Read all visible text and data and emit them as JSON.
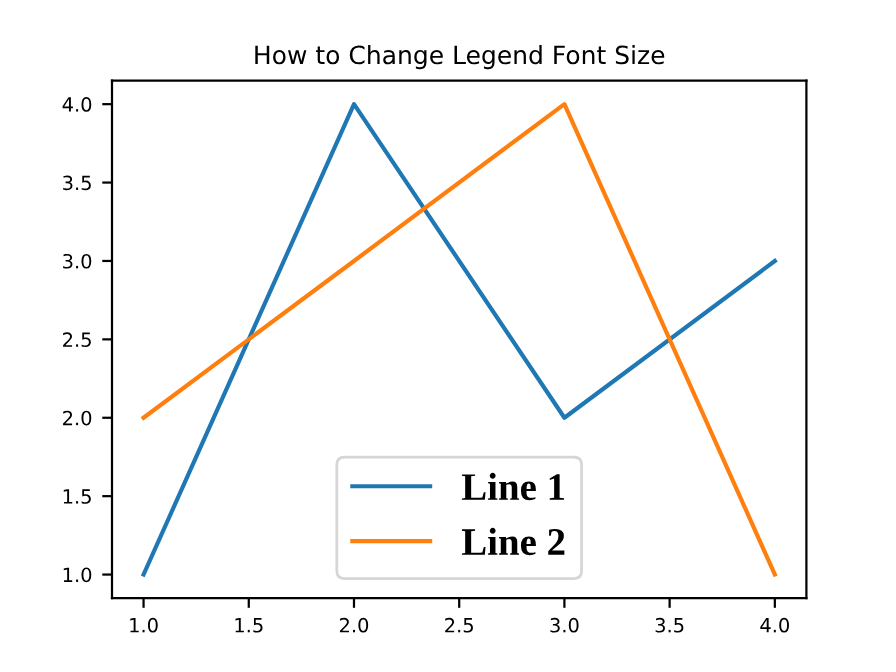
{
  "chart_data": {
    "type": "line",
    "title": "How to Change Legend Font Size",
    "x": [
      1,
      2,
      3,
      4
    ],
    "series": [
      {
        "name": "Line 1",
        "color": "#1f77b4",
        "values": [
          1,
          4,
          2,
          3
        ]
      },
      {
        "name": "Line 2",
        "color": "#ff7f0e",
        "values": [
          2,
          3,
          4,
          1
        ]
      }
    ],
    "xlim": [
      0.85,
      4.15
    ],
    "ylim": [
      0.85,
      4.15
    ],
    "xticks": [
      {
        "value": 1,
        "label": "1.0"
      },
      {
        "value": 1.5,
        "label": "1.5"
      },
      {
        "value": 2,
        "label": "2.0"
      },
      {
        "value": 2.5,
        "label": "2.5"
      },
      {
        "value": 3,
        "label": "3.0"
      },
      {
        "value": 3.5,
        "label": "3.5"
      },
      {
        "value": 4,
        "label": "4.0"
      }
    ],
    "yticks": [
      {
        "value": 1,
        "label": "1.0"
      },
      {
        "value": 1.5,
        "label": "1.5"
      },
      {
        "value": 2,
        "label": "2.0"
      },
      {
        "value": 2.5,
        "label": "2.5"
      },
      {
        "value": 3,
        "label": "3.0"
      },
      {
        "value": 3.5,
        "label": "3.5"
      },
      {
        "value": 4,
        "label": "4.0"
      }
    ],
    "legend": "bottom",
    "grid": false
  }
}
